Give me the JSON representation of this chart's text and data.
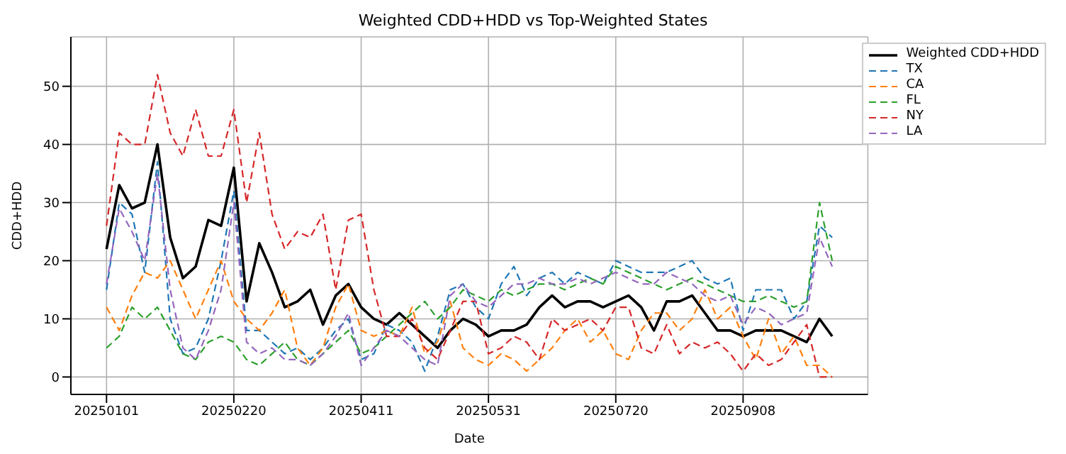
{
  "chart_data": {
    "type": "line",
    "title": "Weighted CDD+HDD vs Top-Weighted States",
    "xlabel": "Date",
    "ylabel": "CDD+HDD",
    "x": [
      "2025-01-01",
      "2025-01-06",
      "2025-01-11",
      "2025-01-16",
      "2025-01-21",
      "2025-01-26",
      "2025-01-31",
      "2025-02-05",
      "2025-02-10",
      "2025-02-15",
      "2025-02-20",
      "2025-02-25",
      "2025-03-02",
      "2025-03-07",
      "2025-03-12",
      "2025-03-17",
      "2025-03-22",
      "2025-03-27",
      "2025-04-01",
      "2025-04-06",
      "2025-04-11",
      "2025-04-16",
      "2025-04-21",
      "2025-04-26",
      "2025-05-01",
      "2025-05-06",
      "2025-05-11",
      "2025-05-16",
      "2025-05-21",
      "2025-05-26",
      "2025-05-31",
      "2025-06-05",
      "2025-06-10",
      "2025-06-15",
      "2025-06-20",
      "2025-06-25",
      "2025-06-30",
      "2025-07-05",
      "2025-07-10",
      "2025-07-15",
      "2025-07-20",
      "2025-07-25",
      "2025-07-30",
      "2025-08-04",
      "2025-08-09",
      "2025-08-14",
      "2025-08-19",
      "2025-08-24",
      "2025-08-29",
      "2025-09-03",
      "2025-09-08",
      "2025-09-13",
      "2025-09-18",
      "2025-09-23",
      "2025-09-28",
      "2025-10-03",
      "2025-10-08",
      "2025-10-13"
    ],
    "series": [
      {
        "name": "Weighted CDD+HDD",
        "color": "#000000",
        "line_style": "solid",
        "values": [
          22,
          33,
          29,
          30,
          40,
          24,
          17,
          19,
          27,
          26,
          36,
          13,
          23,
          18,
          12,
          13,
          15,
          9,
          14,
          16,
          12,
          10,
          9,
          11,
          9,
          7,
          5,
          8,
          10,
          9,
          7,
          8,
          8,
          9,
          12,
          14,
          12,
          13,
          13,
          12,
          13,
          14,
          12,
          8,
          13,
          13,
          14,
          11,
          8,
          8,
          7,
          8,
          8,
          8,
          7,
          6,
          10,
          7
        ]
      },
      {
        "name": "TX",
        "color": "#1f77b4",
        "line_style": "dashed",
        "values": [
          15,
          30,
          28,
          18,
          37,
          10,
          4,
          5,
          10,
          20,
          32,
          8,
          8,
          6,
          4,
          5,
          3,
          5,
          8,
          10,
          3,
          4,
          9,
          8,
          6,
          1,
          7,
          15,
          16,
          12,
          10,
          16,
          19,
          14,
          17,
          18,
          16,
          18,
          17,
          16,
          20,
          19,
          18,
          18,
          18,
          19,
          20,
          17,
          16,
          17,
          8,
          15,
          15,
          15,
          10,
          13,
          26,
          24
        ]
      },
      {
        "name": "CA",
        "color": "#ff7f0e",
        "line_style": "dashed",
        "values": [
          12,
          8,
          14,
          18,
          17,
          20,
          15,
          10,
          15,
          20,
          13,
          10,
          8,
          11,
          15,
          5,
          2,
          5,
          12,
          16,
          8,
          7,
          8,
          7,
          12,
          4,
          6,
          13,
          5,
          3,
          2,
          4,
          3,
          1,
          3,
          5,
          8,
          10,
          6,
          8,
          4,
          3,
          8,
          11,
          11,
          8,
          10,
          15,
          10,
          12,
          7,
          3,
          10,
          4,
          7,
          2,
          2,
          0
        ]
      },
      {
        "name": "FL",
        "color": "#2ca02c",
        "line_style": "dashed",
        "values": [
          5,
          7,
          12,
          10,
          12,
          8,
          4,
          3,
          6,
          7,
          6,
          3,
          2,
          4,
          6,
          3,
          2,
          4,
          6,
          8,
          4,
          5,
          7,
          9,
          11,
          13,
          10,
          12,
          15,
          14,
          13,
          15,
          14,
          15,
          16,
          16,
          15,
          16,
          17,
          16,
          19,
          18,
          17,
          16,
          15,
          16,
          17,
          16,
          15,
          14,
          13,
          13,
          14,
          13,
          12,
          13,
          30,
          20
        ]
      },
      {
        "name": "NY",
        "color": "#d62728",
        "line_style": "dashed",
        "values": [
          26,
          42,
          40,
          40,
          52,
          42,
          38,
          46,
          38,
          38,
          46,
          30,
          42,
          28,
          22,
          25,
          24,
          28,
          15,
          27,
          28,
          15,
          7,
          7,
          10,
          5,
          3,
          8,
          13,
          13,
          4,
          5,
          7,
          6,
          3,
          10,
          8,
          9,
          10,
          8,
          12,
          12,
          5,
          4,
          9,
          4,
          6,
          5,
          6,
          4,
          1,
          4,
          2,
          3,
          6,
          9,
          0,
          0
        ]
      },
      {
        "name": "LA",
        "color": "#9467bd",
        "line_style": "dashed",
        "values": [
          16,
          29,
          25,
          20,
          35,
          15,
          5,
          3,
          8,
          15,
          30,
          6,
          4,
          5,
          3,
          3,
          2,
          4,
          7,
          11,
          2,
          5,
          8,
          7,
          5,
          3,
          2,
          14,
          16,
          13,
          12,
          14,
          16,
          16,
          17,
          16,
          16,
          17,
          16,
          17,
          18,
          17,
          16,
          16,
          18,
          17,
          16,
          14,
          13,
          14,
          9,
          12,
          11,
          9,
          10,
          11,
          24,
          19
        ]
      }
    ],
    "xlim": [
      "2024-12-18",
      "2025-10-27"
    ],
    "xticks": [
      {
        "value": "2025-01-01",
        "label": "20250101"
      },
      {
        "value": "2025-02-20",
        "label": "20250220"
      },
      {
        "value": "2025-04-11",
        "label": "20250411"
      },
      {
        "value": "2025-05-31",
        "label": "20250531"
      },
      {
        "value": "2025-07-20",
        "label": "20250720"
      },
      {
        "value": "2025-09-08",
        "label": "20250908"
      }
    ],
    "ylim": [
      -3,
      58.5
    ],
    "yticks": [
      0,
      10,
      20,
      30,
      40,
      50
    ],
    "grid": true,
    "legend": "top right",
    "marker": "none"
  }
}
